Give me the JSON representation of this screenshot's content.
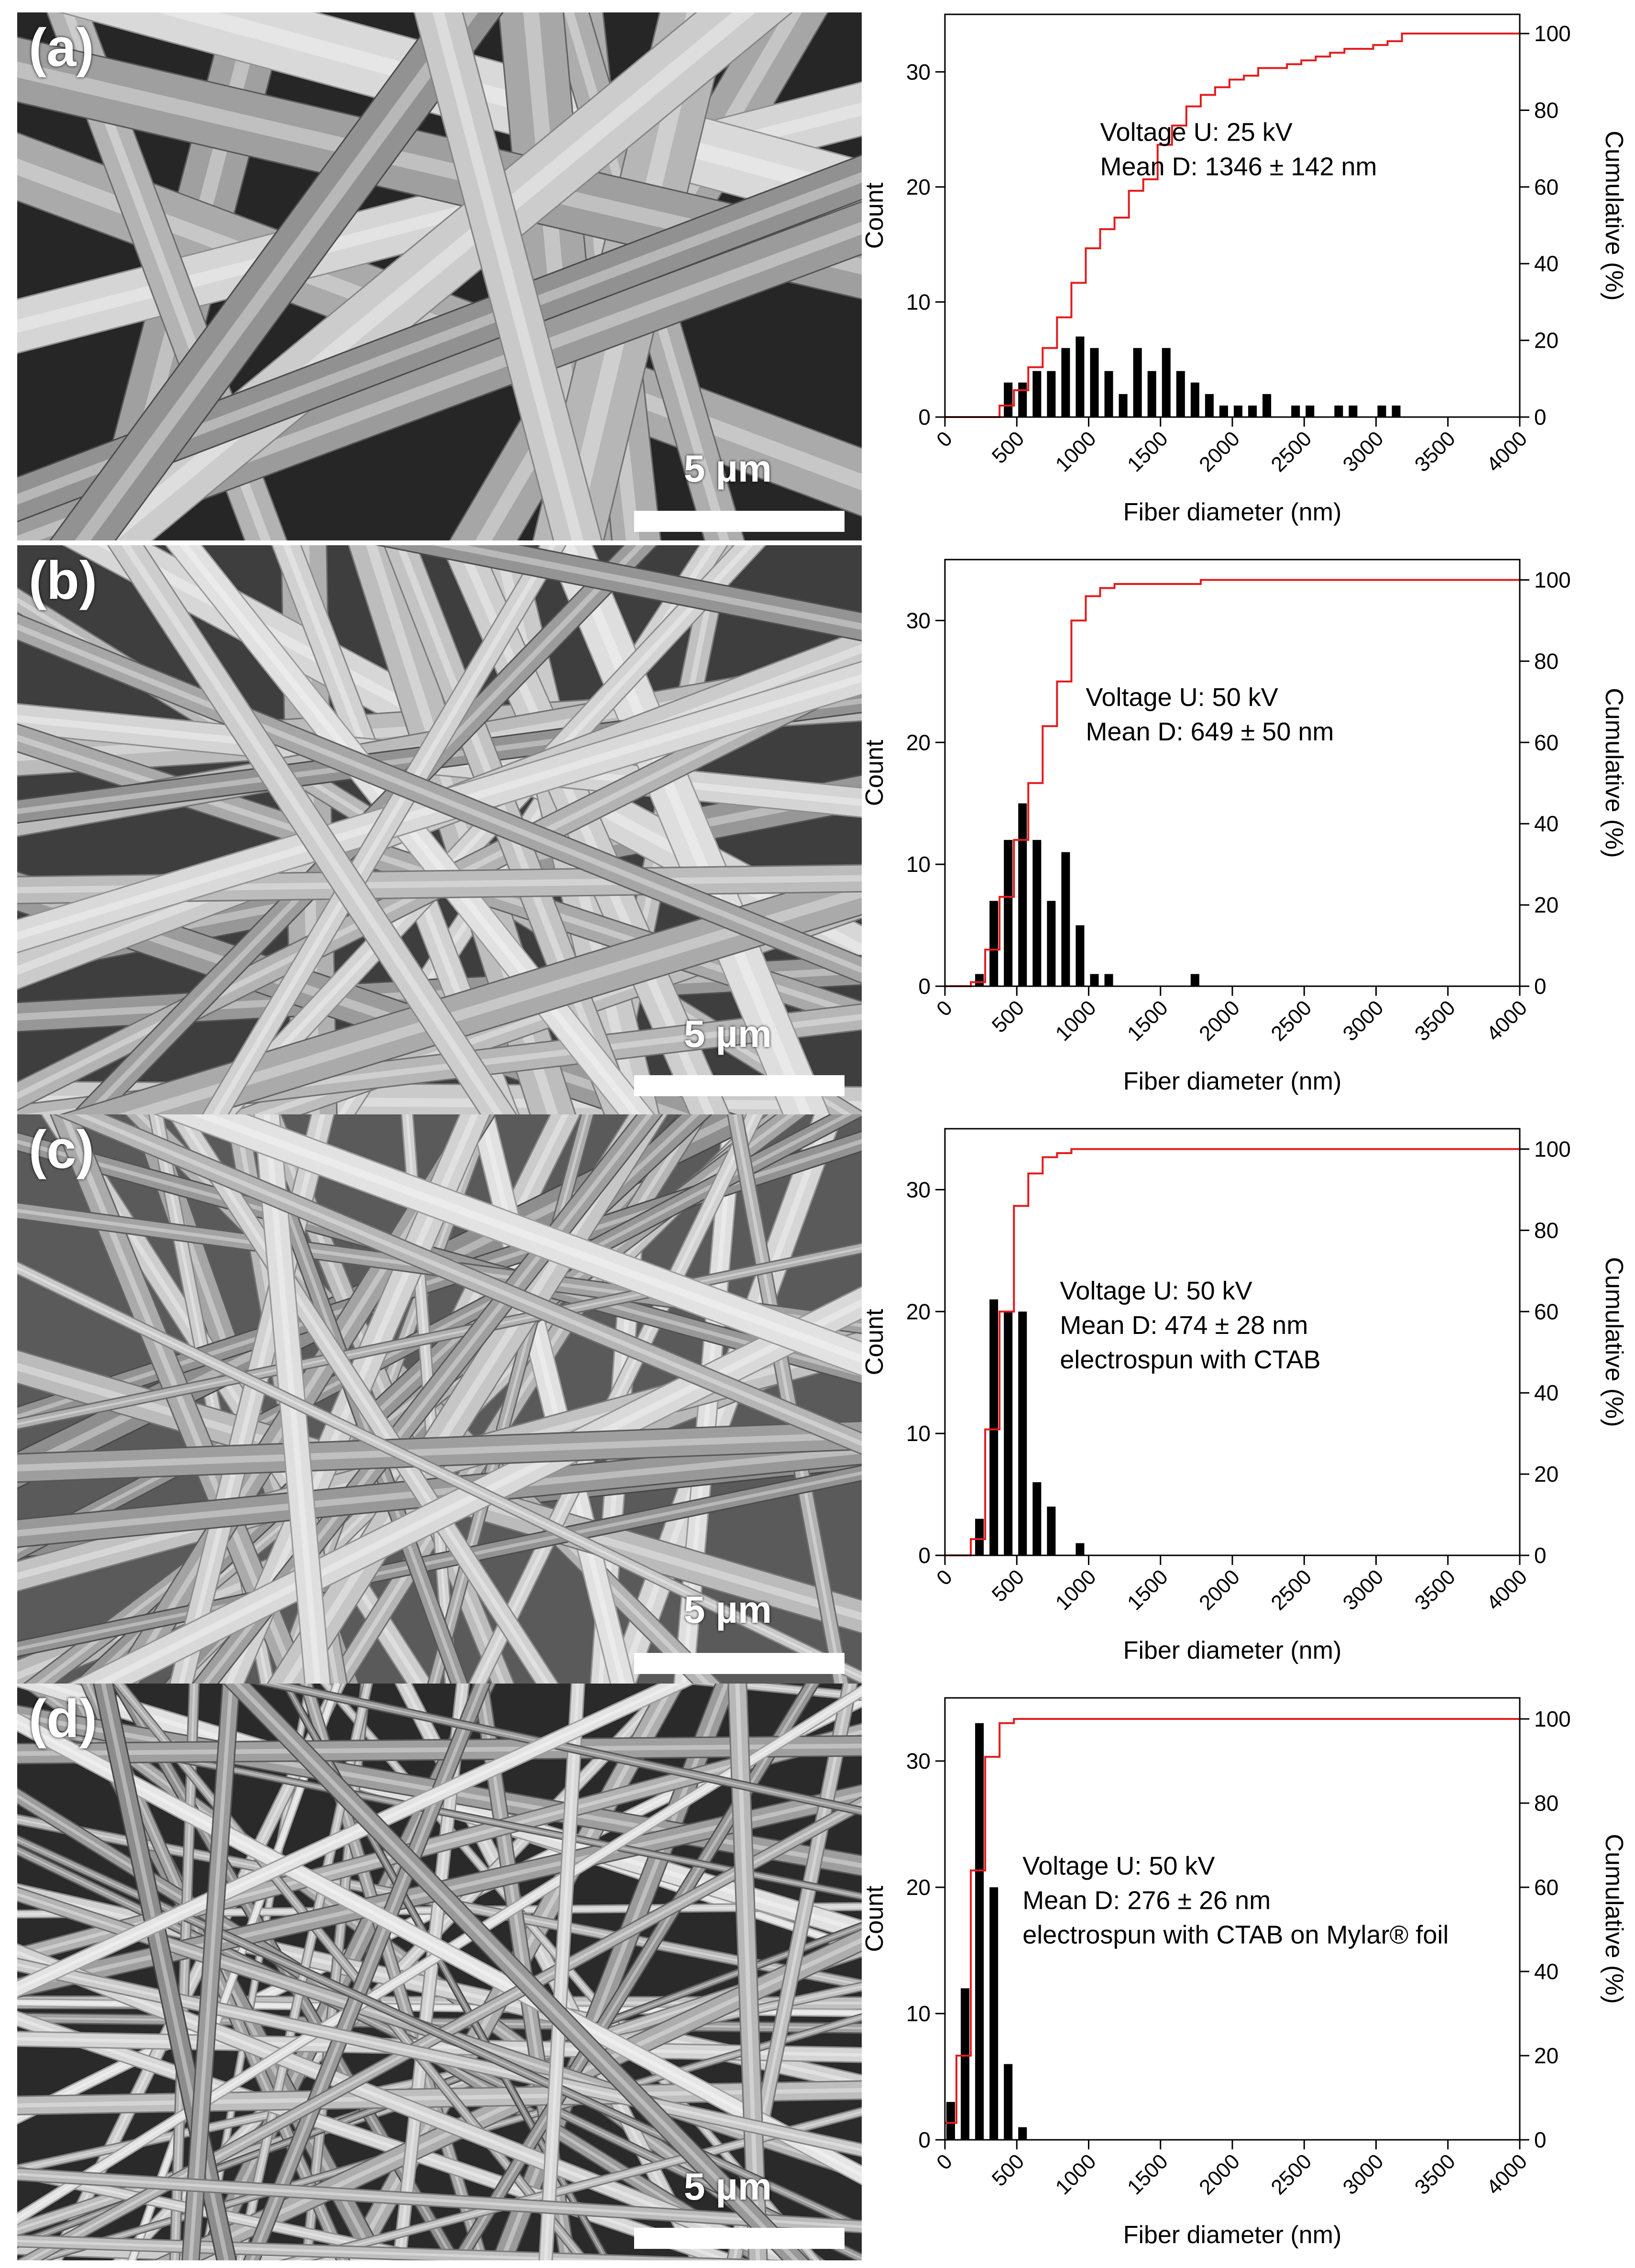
{
  "figure": {
    "panels": [
      {
        "label": "(a)",
        "scale_text": "5 µm"
      },
      {
        "label": "(b)",
        "scale_text": "5 µm"
      },
      {
        "label": "(c)",
        "scale_text": "5 µm"
      },
      {
        "label": "(d)",
        "scale_text": "5 µm"
      }
    ]
  },
  "chart_data": [
    {
      "type": "bar",
      "panel": "(a)",
      "xlabel": "Fiber diameter (nm)",
      "ylabel": "Count",
      "y2label": "Cumulative (%)",
      "xlim": [
        0,
        4000
      ],
      "ylim": [
        0,
        35
      ],
      "y2lim": [
        0,
        105
      ],
      "xticks": [
        "0",
        "500",
        "1000",
        "1500",
        "2000",
        "2500",
        "3000",
        "3500",
        "4000"
      ],
      "yticks": [
        "0",
        "10",
        "20",
        "30"
      ],
      "y2ticks": [
        "0",
        "20",
        "40",
        "60",
        "80",
        "100"
      ],
      "annotations": [
        "Voltage U: 25 kV",
        "Mean D: 1346 ± 142 nm"
      ],
      "series": [
        {
          "name": "Count",
          "style": "bar",
          "bin_width": 100,
          "x": [
            400,
            500,
            600,
            700,
            800,
            900,
            1000,
            1100,
            1200,
            1300,
            1400,
            1500,
            1600,
            1700,
            1800,
            1900,
            2000,
            2100,
            2200,
            2300,
            2400,
            2500,
            2600,
            2700,
            2800,
            2900,
            3000,
            3100
          ],
          "values": [
            3,
            3,
            4,
            4,
            6,
            7,
            6,
            4,
            2,
            6,
            4,
            6,
            4,
            3,
            2,
            1,
            1,
            1,
            2,
            0,
            1,
            1,
            0,
            1,
            1,
            0,
            1,
            1
          ]
        },
        {
          "name": "Cumulative",
          "style": "step",
          "color": "#e41a1c",
          "x": [
            0,
            380,
            480,
            580,
            680,
            780,
            880,
            980,
            1080,
            1180,
            1280,
            1380,
            1480,
            1580,
            1680,
            1780,
            1880,
            1980,
            2080,
            2180,
            2280,
            2380,
            2480,
            2580,
            2680,
            2780,
            2880,
            2980,
            3080,
            3180,
            4000
          ],
          "values": [
            0,
            3,
            7,
            13,
            18,
            26,
            35,
            44,
            49,
            52,
            59,
            62,
            71,
            76,
            81,
            84,
            86,
            88,
            89,
            91,
            91,
            92,
            93,
            94,
            95,
            96,
            96,
            97,
            98,
            100,
            100
          ]
        }
      ]
    },
    {
      "type": "bar",
      "panel": "(b)",
      "xlabel": "Fiber diameter (nm)",
      "ylabel": "Count",
      "y2label": "Cumulative (%)",
      "xlim": [
        0,
        4000
      ],
      "ylim": [
        0,
        35
      ],
      "y2lim": [
        0,
        105
      ],
      "xticks": [
        "0",
        "500",
        "1000",
        "1500",
        "2000",
        "2500",
        "3000",
        "3500",
        "4000"
      ],
      "yticks": [
        "0",
        "10",
        "20",
        "30"
      ],
      "y2ticks": [
        "0",
        "20",
        "40",
        "60",
        "80",
        "100"
      ],
      "annotations": [
        "Voltage U: 50 kV",
        "Mean D: 649 ± 50 nm"
      ],
      "series": [
        {
          "name": "Count",
          "style": "bar",
          "bin_width": 100,
          "x": [
            200,
            300,
            400,
            500,
            600,
            700,
            800,
            900,
            1000,
            1100,
            1700
          ],
          "values": [
            1,
            7,
            12,
            15,
            12,
            7,
            11,
            5,
            1,
            1,
            1
          ]
        },
        {
          "name": "Cumulative",
          "style": "step",
          "color": "#e41a1c",
          "x": [
            0,
            180,
            280,
            380,
            480,
            580,
            680,
            780,
            880,
            980,
            1080,
            1180,
            1680,
            1780,
            4000
          ],
          "values": [
            0,
            1,
            9,
            22,
            36,
            50,
            64,
            75,
            90,
            96,
            98,
            99,
            99,
            100,
            100
          ]
        }
      ]
    },
    {
      "type": "bar",
      "panel": "(c)",
      "xlabel": "Fiber diameter (nm)",
      "ylabel": "Count",
      "y2label": "Cumulative (%)",
      "xlim": [
        0,
        4000
      ],
      "ylim": [
        0,
        35
      ],
      "y2lim": [
        0,
        105
      ],
      "xticks": [
        "0",
        "500",
        "1000",
        "1500",
        "2000",
        "2500",
        "3000",
        "3500",
        "4000"
      ],
      "yticks": [
        "0",
        "10",
        "20",
        "30"
      ],
      "y2ticks": [
        "0",
        "20",
        "40",
        "60",
        "80",
        "100"
      ],
      "annotations": [
        "Voltage U: 50 kV",
        "Mean D: 474 ± 28 nm",
        "electrospun with CTAB"
      ],
      "series": [
        {
          "name": "Count",
          "style": "bar",
          "bin_width": 100,
          "x": [
            200,
            300,
            400,
            500,
            600,
            700,
            900
          ],
          "values": [
            3,
            21,
            20,
            20,
            6,
            4,
            1
          ]
        },
        {
          "name": "Cumulative",
          "style": "step",
          "color": "#e41a1c",
          "x": [
            0,
            180,
            280,
            380,
            480,
            580,
            680,
            780,
            880,
            4000
          ],
          "values": [
            0,
            4,
            31,
            60,
            86,
            94,
            98,
            99,
            100,
            100
          ]
        }
      ]
    },
    {
      "type": "bar",
      "panel": "(d)",
      "xlabel": "Fiber diameter (nm)",
      "ylabel": "Count",
      "y2label": "Cumulative (%)",
      "xlim": [
        0,
        4000
      ],
      "ylim": [
        0,
        35
      ],
      "y2lim": [
        0,
        105
      ],
      "xticks": [
        "0",
        "500",
        "1000",
        "1500",
        "2000",
        "2500",
        "3000",
        "3500",
        "4000"
      ],
      "yticks": [
        "0",
        "10",
        "20",
        "30"
      ],
      "y2ticks": [
        "0",
        "20",
        "40",
        "60",
        "80",
        "100"
      ],
      "annotations": [
        "Voltage U: 50 kV",
        "Mean D: 276 ± 26 nm",
        "electrospun with CTAB on Mylar® foil"
      ],
      "series": [
        {
          "name": "Count",
          "style": "bar",
          "bin_width": 100,
          "x": [
            0,
            100,
            200,
            300,
            400,
            500
          ],
          "values": [
            3,
            12,
            33,
            20,
            6,
            1
          ]
        },
        {
          "name": "Cumulative",
          "style": "step",
          "color": "#e41a1c",
          "x": [
            0,
            80,
            180,
            280,
            380,
            480,
            4000
          ],
          "values": [
            4,
            20,
            64,
            91,
            99,
            100,
            100
          ]
        }
      ]
    }
  ]
}
